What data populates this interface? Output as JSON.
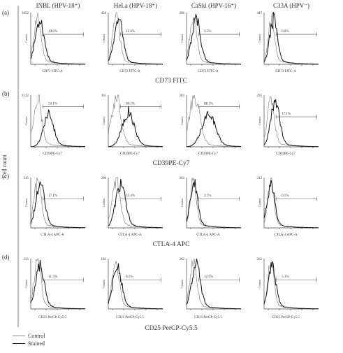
{
  "figure": {
    "y_axis_label": "Cell count",
    "cell_lines": [
      "INBL (HPV-18⁺)",
      "HeLa (HPV-18⁺)",
      "CaSki (HPV-16⁺)",
      "C33A (HPV⁻)"
    ],
    "legend": {
      "control": "Control",
      "stained": "Stained"
    }
  },
  "chart_data": [
    {
      "type": "line",
      "panel": "(a)",
      "marker_title": "CD73 FITC",
      "xlabel": "CD73 FITC-A",
      "ylabel": "Counts",
      "grid": false,
      "histograms": [
        {
          "cell_line": "INBL (HPV-18⁺)",
          "y_max": "3652",
          "percent": "19.6%",
          "control_peak": 0.12,
          "stained_peak": 0.16,
          "spread": 0.08
        },
        {
          "cell_line": "HeLa (HPV-18⁺)",
          "y_max": "458",
          "percent": "15.6%",
          "control_peak": 0.14,
          "stained_peak": 0.18,
          "spread": 0.08
        },
        {
          "cell_line": "CaSki (HPV-16⁺)",
          "y_max": "496",
          "percent": "9.5%",
          "control_peak": 0.12,
          "stained_peak": 0.17,
          "spread": 0.08
        },
        {
          "cell_line": "C33A (HPV⁻)",
          "y_max": "447",
          "percent": "8.8%",
          "control_peak": 0.13,
          "stained_peak": 0.17,
          "spread": 0.07
        }
      ]
    },
    {
      "type": "line",
      "panel": "(b)",
      "marker_title": "CD39PE-Cy7",
      "xlabel": "CD39PE-Cy7",
      "ylabel": "Counts",
      "grid": false,
      "histograms": [
        {
          "cell_line": "INBL (HPV-18⁺)",
          "y_max": "3122",
          "percent": "74.1%",
          "control_peak": 0.12,
          "stained_peak": 0.32,
          "spread": 0.09
        },
        {
          "cell_line": "HeLa (HPV-18⁺)",
          "y_max": "361",
          "percent": "80.1%",
          "control_peak": 0.14,
          "stained_peak": 0.36,
          "spread": 0.11
        },
        {
          "cell_line": "CaSki (HPV-16⁺)",
          "y_max": "283",
          "percent": "88.1%",
          "control_peak": 0.14,
          "stained_peak": 0.4,
          "spread": 0.12
        },
        {
          "cell_line": "C33A (HPV⁻)",
          "y_max": "295",
          "percent": "17.1%",
          "control_peak": 0.12,
          "stained_peak": 0.2,
          "spread": 0.08
        }
      ]
    },
    {
      "type": "line",
      "panel": "(c)",
      "marker_title": "CTLA-4 APC",
      "xlabel": "CTLA-4 APC-A",
      "ylabel": "Counts",
      "grid": false,
      "histograms": [
        {
          "cell_line": "INBL (HPV-18⁺)",
          "y_max": "345",
          "percent": "17.1%",
          "control_peak": 0.12,
          "stained_peak": 0.17,
          "spread": 0.08
        },
        {
          "cell_line": "HeLa (HPV-18⁺)",
          "y_max": "296",
          "percent": "35.4%",
          "control_peak": 0.14,
          "stained_peak": 0.22,
          "spread": 0.09
        },
        {
          "cell_line": "CaSki (HPV-16⁺)",
          "y_max": "363",
          "percent": "2.1%",
          "control_peak": 0.12,
          "stained_peak": 0.13,
          "spread": 0.07
        },
        {
          "cell_line": "C33A (HPV⁻)",
          "y_max": "312",
          "percent": "0.5%",
          "control_peak": 0.12,
          "stained_peak": 0.12,
          "spread": 0.07
        }
      ]
    },
    {
      "type": "line",
      "panel": "(d)",
      "marker_title": "CD25 PerCP-Cy5.5",
      "xlabel": "CD25 PerCP-Cy5.5",
      "ylabel": "Counts",
      "grid": false,
      "histograms": [
        {
          "cell_line": "INBL (HPV-18⁺)",
          "y_max": "235",
          "percent": "11.3%",
          "control_peak": 0.12,
          "stained_peak": 0.16,
          "spread": 0.08
        },
        {
          "cell_line": "HeLa (HPV-18⁺)",
          "y_max": "183",
          "percent": "8.5%",
          "control_peak": 0.13,
          "stained_peak": 0.16,
          "spread": 0.08
        },
        {
          "cell_line": "CaSki (HPV-16⁺)",
          "y_max": "262",
          "percent": "12.9%",
          "control_peak": 0.12,
          "stained_peak": 0.17,
          "spread": 0.08
        },
        {
          "cell_line": "C33A (HPV⁻)",
          "y_max": "262",
          "percent": "5.1%",
          "control_peak": 0.12,
          "stained_peak": 0.14,
          "spread": 0.07
        }
      ]
    }
  ]
}
